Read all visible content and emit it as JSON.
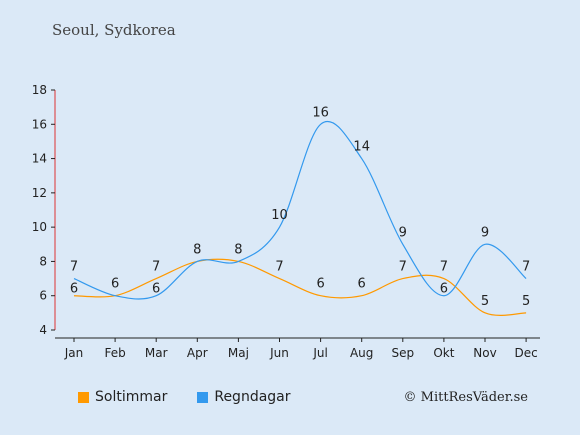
{
  "title": "Seoul, Sydkorea",
  "credit": "© MittResVäder.se",
  "colors": {
    "sun": "#ff9900",
    "rain": "#3399ee",
    "background": "#dbe9f7"
  },
  "chart_data": {
    "type": "line",
    "categories": [
      "Jan",
      "Feb",
      "Mar",
      "Apr",
      "Maj",
      "Jun",
      "Jul",
      "Aug",
      "Sep",
      "Okt",
      "Nov",
      "Dec"
    ],
    "ylim": [
      4,
      18
    ],
    "yticks": [
      4,
      6,
      8,
      10,
      12,
      14,
      16,
      18
    ],
    "grid": false,
    "legend_placement": "bottom-left",
    "series": [
      {
        "name": "Soltimmar",
        "color": "#ff9900",
        "values": [
          6,
          6,
          7,
          8,
          8,
          7,
          6,
          6,
          7,
          7,
          5,
          5
        ]
      },
      {
        "name": "Regndagar",
        "color": "#3399ee",
        "values": [
          7,
          6,
          6,
          8,
          8,
          10,
          16,
          14,
          9,
          6,
          9,
          7
        ]
      }
    ]
  }
}
